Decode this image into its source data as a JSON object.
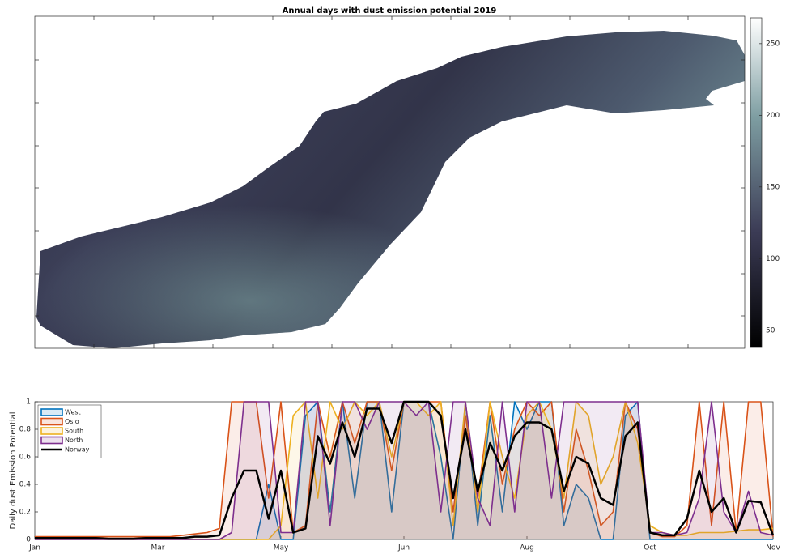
{
  "chart_data": [
    {
      "type": "heatmap",
      "title": "Annual days with dust emission potential 2019",
      "clim": [
        38,
        268
      ],
      "cticks": [
        50,
        100,
        150,
        200,
        250
      ]
    },
    {
      "type": "line",
      "ylabel": "Daily dust Emission Potential",
      "x": [
        0,
        5,
        10,
        15,
        20,
        25,
        30,
        35,
        40,
        45,
        50,
        55,
        60,
        65,
        70,
        75,
        80,
        85,
        90,
        95,
        100,
        105,
        110,
        115,
        120,
        125,
        130,
        135,
        140,
        145,
        150,
        155,
        160,
        165,
        170,
        175,
        180,
        185,
        190,
        195,
        200,
        205,
        210,
        215,
        220,
        225,
        230,
        235,
        240,
        245,
        250,
        255,
        260,
        265,
        270,
        275,
        280,
        285,
        290,
        295,
        300
      ],
      "xlim": [
        0,
        300
      ],
      "xticks": [
        {
          "value": 0,
          "label": "Jan"
        },
        {
          "value": 50,
          "label": "Mar"
        },
        {
          "value": 100,
          "label": "May"
        },
        {
          "value": 150,
          "label": "Jun"
        },
        {
          "value": 200,
          "label": "Aug"
        },
        {
          "value": 250,
          "label": "Oct"
        },
        {
          "value": 300,
          "label": "Nov"
        }
      ],
      "ylim": [
        0,
        1
      ],
      "yticks": [
        0,
        0.2,
        0.4,
        0.6,
        0.8,
        1
      ],
      "legend": "upper left",
      "fill": true,
      "series": [
        {
          "name": "West",
          "color": "#0072bd",
          "values": [
            0,
            0,
            0,
            0,
            0,
            0,
            0,
            0,
            0,
            0,
            0,
            0,
            0,
            0,
            0,
            0,
            0,
            0,
            0,
            0.4,
            0,
            0,
            0.9,
            1,
            0.2,
            1,
            0.3,
            1,
            1,
            0.2,
            1,
            1,
            1,
            0.6,
            0,
            1,
            0.1,
            0.9,
            0.2,
            1,
            0.8,
            1,
            1,
            0.1,
            0.4,
            0.3,
            0,
            0,
            0.9,
            1,
            0,
            0,
            0,
            0,
            0,
            0,
            0,
            0,
            0,
            0,
            0
          ]
        },
        {
          "name": "Oslo",
          "color": "#d95319",
          "values": [
            0.02,
            0.02,
            0.02,
            0.02,
            0.02,
            0.02,
            0.02,
            0.02,
            0.02,
            0.02,
            0.02,
            0.02,
            0.03,
            0.04,
            0.05,
            0.08,
            1,
            1,
            1,
            0.3,
            1,
            0.05,
            0.1,
            1,
            0.6,
            1,
            0.7,
            1,
            1,
            0.5,
            1,
            1,
            1,
            1,
            0.2,
            0.9,
            0.3,
            1,
            0.4,
            0.8,
            1,
            0.9,
            1,
            0.2,
            0.8,
            0.5,
            0.1,
            0.2,
            1,
            0.8,
            0.05,
            0.02,
            0.02,
            0.1,
            1,
            0.1,
            1,
            0.05,
            1,
            1,
            0.02
          ]
        },
        {
          "name": "South",
          "color": "#edb120",
          "values": [
            0,
            0,
            0,
            0,
            0,
            0,
            0,
            0,
            0,
            0,
            0,
            0,
            0,
            0,
            0,
            0,
            0,
            0,
            0,
            0,
            0.1,
            0.9,
            1,
            0.3,
            1,
            0.8,
            1,
            0.9,
            1,
            0.6,
            1,
            1,
            0.9,
            1,
            0.1,
            1,
            0.2,
            1,
            0.6,
            0.3,
            0.9,
            1,
            0.8,
            0.3,
            1,
            0.9,
            0.4,
            0.6,
            1,
            0.7,
            0.1,
            0.05,
            0.03,
            0.03,
            0.05,
            0.05,
            0.05,
            0.06,
            0.07,
            0.07,
            0.08
          ]
        },
        {
          "name": "North",
          "color": "#7e2f8e",
          "values": [
            0,
            0,
            0,
            0,
            0,
            0,
            0,
            0,
            0,
            0,
            0,
            0,
            0,
            0,
            0,
            0,
            0.05,
            1,
            1,
            1,
            0.05,
            0.05,
            1,
            1,
            0.1,
            1,
            1,
            0.8,
            1,
            1,
            1,
            0.9,
            1,
            0.2,
            1,
            1,
            0.3,
            0.1,
            1,
            0.2,
            1,
            1,
            0.3,
            1,
            1,
            1,
            1,
            1,
            1,
            1,
            0.05,
            0.05,
            0.03,
            0.05,
            0.3,
            1,
            0.2,
            0.05,
            0.35,
            0.05,
            0.03
          ]
        },
        {
          "name": "Norway",
          "color": "#000000",
          "width": 2.5,
          "values": [
            0.01,
            0.01,
            0.01,
            0.01,
            0.01,
            0.01,
            0.005,
            0.005,
            0.005,
            0.01,
            0.01,
            0.01,
            0.01,
            0.02,
            0.02,
            0.03,
            0.3,
            0.5,
            0.5,
            0.15,
            0.5,
            0.05,
            0.08,
            0.75,
            0.55,
            0.85,
            0.6,
            0.95,
            0.95,
            0.7,
            1,
            1,
            1,
            0.9,
            0.3,
            0.8,
            0.35,
            0.7,
            0.5,
            0.75,
            0.85,
            0.85,
            0.8,
            0.35,
            0.6,
            0.55,
            0.3,
            0.25,
            0.75,
            0.85,
            0.05,
            0.03,
            0.03,
            0.15,
            0.5,
            0.2,
            0.3,
            0.05,
            0.28,
            0.27,
            0.03
          ]
        }
      ]
    }
  ]
}
